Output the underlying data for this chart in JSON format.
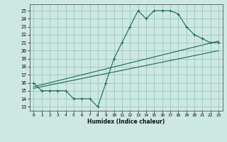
{
  "xlabel": "Humidex (Indice chaleur)",
  "bg_color": "#cce8e0",
  "grid_color": "#99c8c0",
  "line_color": "#1a6858",
  "xlim": [
    -0.5,
    23.5
  ],
  "ylim": [
    12.5,
    25.8
  ],
  "yticks": [
    13,
    14,
    15,
    16,
    17,
    18,
    19,
    20,
    21,
    22,
    23,
    24,
    25
  ],
  "xticks": [
    0,
    1,
    2,
    3,
    4,
    5,
    6,
    7,
    8,
    9,
    10,
    11,
    12,
    13,
    14,
    15,
    16,
    17,
    18,
    19,
    20,
    21,
    22,
    23
  ],
  "line1_x": [
    0,
    1,
    2,
    3,
    4,
    5,
    6,
    7,
    8,
    9,
    10,
    11,
    12,
    13,
    14,
    15,
    16,
    17,
    18,
    19,
    20,
    21,
    22,
    23
  ],
  "line1_y": [
    16,
    15,
    15,
    15,
    15,
    14,
    14,
    14,
    13,
    16,
    19,
    21,
    23,
    25,
    24,
    25,
    25,
    25,
    24.6,
    23,
    22,
    21.5,
    21,
    21
  ],
  "line2_x": [
    0,
    23
  ],
  "line2_y": [
    15.5,
    21.2
  ],
  "line3_x": [
    0,
    23
  ],
  "line3_y": [
    15.3,
    20.0
  ]
}
